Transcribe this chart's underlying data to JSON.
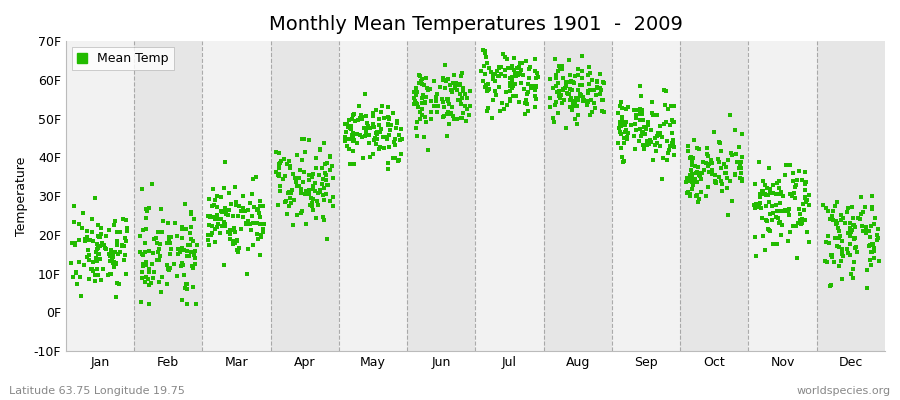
{
  "title": "Monthly Mean Temperatures 1901  -  2009",
  "ylabel": "Temperature",
  "dot_color": "#22bb00",
  "bg_light": "#f2f2f2",
  "bg_dark": "#e6e6e6",
  "ylim": [
    -10,
    70
  ],
  "yticks": [
    -10,
    0,
    10,
    20,
    30,
    40,
    50,
    60,
    70
  ],
  "ytick_labels": [
    "-10F",
    "0F",
    "10F",
    "20F",
    "30F",
    "40F",
    "50F",
    "60F",
    "70F"
  ],
  "months": [
    "Jan",
    "Feb",
    "Mar",
    "Apr",
    "May",
    "Jun",
    "Jul",
    "Aug",
    "Sep",
    "Oct",
    "Nov",
    "Dec"
  ],
  "month_means_f": [
    16,
    16,
    24,
    34,
    46,
    55,
    60,
    57,
    47,
    37,
    27,
    19
  ],
  "month_stds_f": [
    5,
    6,
    5,
    5,
    4,
    4,
    4,
    4,
    4,
    4,
    5,
    5
  ],
  "n_years": 109,
  "footer_left": "Latitude 63.75 Longitude 19.75",
  "footer_right": "worldspecies.org",
  "legend_label": "Mean Temp",
  "title_fontsize": 14,
  "axis_fontsize": 9,
  "tick_fontsize": 9,
  "footer_fontsize": 8
}
